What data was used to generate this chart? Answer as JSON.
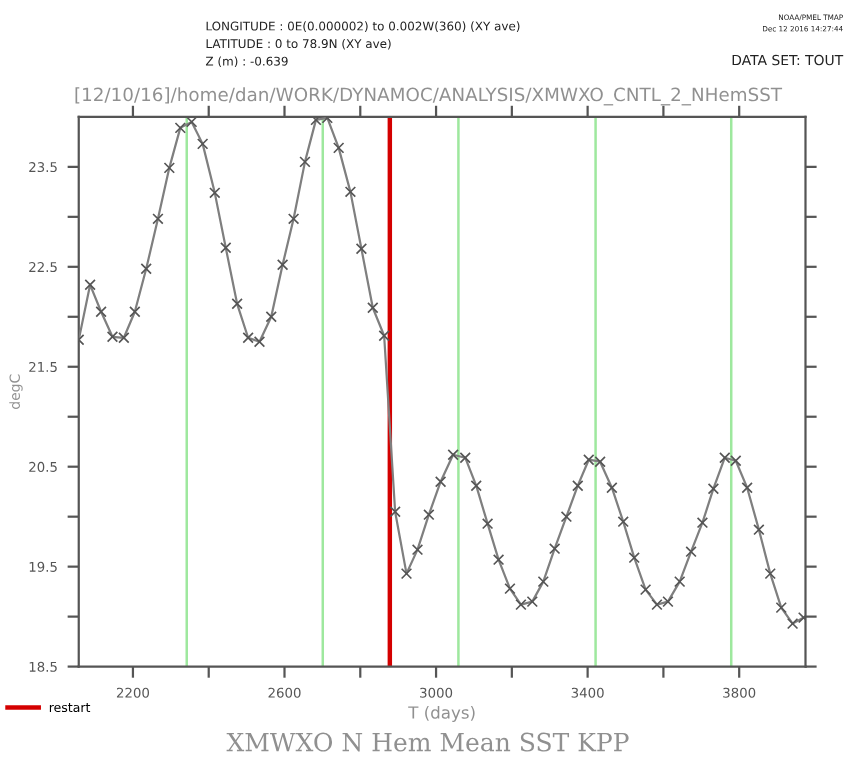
{
  "chart_data": {
    "type": "line",
    "title": "XMWXO N Hem Mean SST KPP",
    "subtitle": "[12/10/16]/home/dan/WORK/DYNAMOC/ANALYSIS/XMWXO_CNTL_2_NHemSST",
    "annotations": [
      "LONGITUDE : 0E(0.000002) to 0.002W(360) (XY ave)",
      "LATITUDE : 0 to 78.9N (XY ave)",
      "Z (m) : -0.639",
      "DATA SET: TOUT",
      "NOAA/PMEL TMAP",
      "Dec 12 2016 14:27:44"
    ],
    "xlabel": "T (days)",
    "ylabel": "degC",
    "series": [
      {
        "color": "#7f7f7f",
        "x": [
          2057,
          2087,
          2116,
          2146,
          2176,
          2205,
          2235,
          2266,
          2296,
          2325,
          2355,
          2384,
          2416,
          2445,
          2475,
          2504,
          2534,
          2565,
          2595,
          2624,
          2654,
          2683,
          2713,
          2743,
          2774,
          2803,
          2833,
          2863,
          2892,
          2922,
          2951,
          2981,
          3012,
          3045,
          3077,
          3106,
          3136,
          3165,
          3195,
          3224,
          3254,
          3283,
          3313,
          3344,
          3374,
          3403,
          3433,
          3464,
          3494,
          3523,
          3553,
          3583,
          3612,
          3643,
          3673,
          3703,
          3732,
          3762,
          3791,
          3821,
          3852,
          3882,
          3911,
          3941,
          3970
        ],
        "values": [
          21.77,
          22.32,
          22.05,
          21.8,
          21.79,
          22.05,
          22.48,
          22.98,
          23.49,
          23.89,
          23.95,
          23.73,
          23.24,
          22.69,
          22.13,
          21.79,
          21.75,
          22.0,
          22.52,
          22.98,
          23.55,
          23.97,
          23.99,
          23.69,
          23.25,
          22.68,
          22.09,
          21.81,
          20.05,
          19.43,
          19.67,
          20.02,
          20.35,
          20.62,
          20.59,
          20.31,
          19.93,
          19.57,
          19.28,
          19.12,
          19.15,
          19.35,
          19.68,
          20.0,
          20.31,
          20.57,
          20.55,
          20.29,
          19.95,
          19.59,
          19.27,
          19.12,
          19.15,
          19.35,
          19.65,
          19.94,
          20.28,
          20.59,
          20.56,
          20.29,
          19.87,
          19.43,
          19.09,
          18.93,
          18.99
        ]
      }
    ],
    "marker": "cross",
    "line_style": "solid",
    "grid": false,
    "legend": "bottom left",
    "xlim": [
      2057,
      3975
    ],
    "xticks": [
      2200,
      {
        "value": 2400,
        "label": null
      },
      2600,
      {
        "value": 2800,
        "label": null
      },
      3000,
      {
        "value": 3200,
        "label": null
      },
      3400,
      {
        "value": 3600,
        "label": null
      },
      3800
    ],
    "ylim": [
      18.5,
      24.0
    ],
    "yticks": [
      18.5,
      {
        "value": 19,
        "label": null
      },
      19.5,
      {
        "value": 20,
        "label": null
      },
      20.5,
      {
        "value": 21,
        "label": null
      },
      21.5,
      {
        "value": 22,
        "label": null
      },
      22.5,
      {
        "value": 23,
        "label": null
      },
      23.5
    ],
    "ref_lines": [
      {
        "axis": "x",
        "value": 2342,
        "color": "#9ee89e"
      },
      {
        "axis": "x",
        "value": 2701,
        "color": "#9ee89e"
      },
      {
        "axis": "x",
        "value": 3059,
        "color": "#9ee89e"
      },
      {
        "axis": "x",
        "value": 3421,
        "color": "#9ee89e"
      },
      {
        "axis": "x",
        "value": 3779,
        "color": "#9ee89e"
      },
      {
        "axis": "x",
        "value": 2878,
        "color": "#d40000",
        "label": "restart"
      }
    ]
  }
}
